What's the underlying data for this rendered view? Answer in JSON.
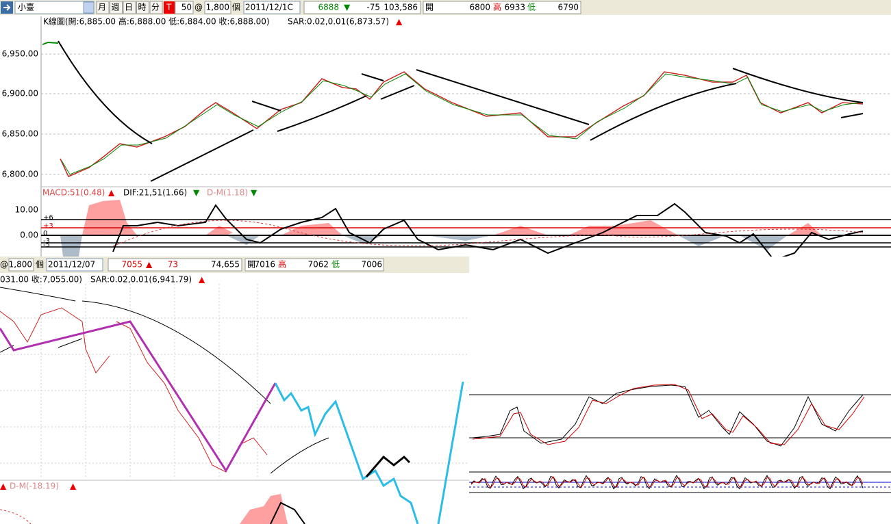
{
  "toolbar": {
    "symbol": "小臺",
    "periods": [
      "月",
      "週",
      "日",
      "時",
      "分"
    ],
    "t": "T",
    "count": "50",
    "at": "@",
    "qty": "1,800",
    "unit": "個",
    "date": "2011/12/1C",
    "last": "6888",
    "arrow": "▼",
    "change": "-75",
    "volume": "103,586",
    "open_label": "開",
    "open": "6800",
    "high_label": "高",
    "high": "6933",
    "low_label": "低",
    "low": "6790"
  },
  "top_chart": {
    "title": "K線圖(開:6,885.00 高:6,888.00 低:6,884.00 收:6,888.00)",
    "sar": "SAR:0.02,0.01(6,873.57)",
    "sar_arrow": "▲",
    "yticks": [
      "6,950.00",
      "6,900.00",
      "6,850.00",
      "6,800.00"
    ],
    "macd": {
      "macd": "MACD:51(0.48)",
      "macd_arrow": "▲",
      "dif": "DIF:21,51(1.66)",
      "dif_arrow": "▼",
      "dm": "D-M(1.18)",
      "dm_arrow": "▼",
      "yticks": [
        "10.00",
        "0.00"
      ],
      "levels": [
        "+6",
        "+3",
        "0",
        "-3",
        "-5"
      ]
    }
  },
  "bottom_window": {
    "at": "@",
    "qty": "1,800",
    "unit": "個",
    "date": "2011/12/07",
    "last": "7055",
    "arrow": "▲",
    "change": "73",
    "volume": "74,655",
    "open_label": "開",
    "open": "7016",
    "high_label": "高",
    "high": "7062",
    "low_label": "低",
    "low": "7006",
    "title": "031.00 收:7,055.00)",
    "sar": "SAR:0.02,0.01(6,941.79)",
    "sar_arrow": "▲",
    "dm": "D-M(-18.19)",
    "dm_arrow": "▲"
  }
}
